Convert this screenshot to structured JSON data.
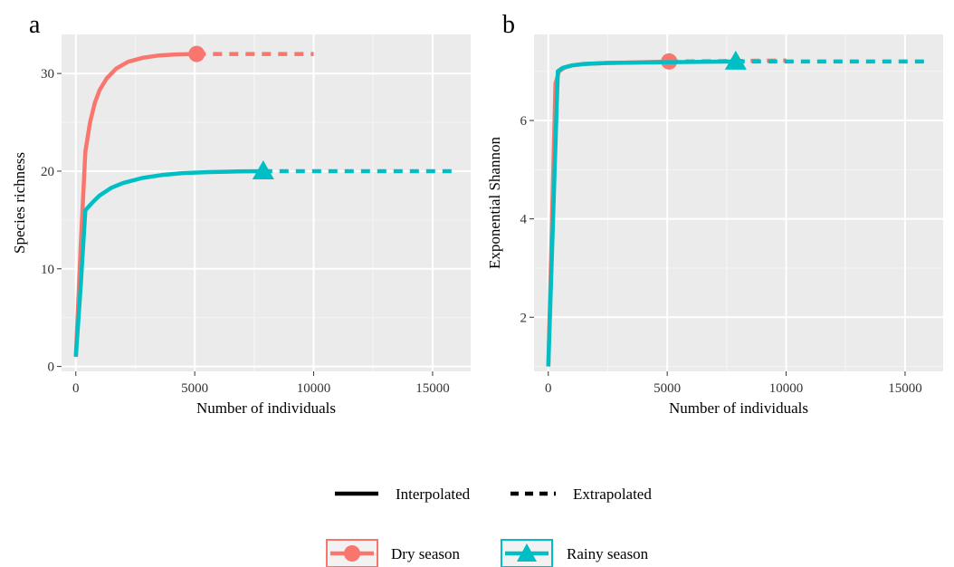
{
  "colors": {
    "dry": "#F8766D",
    "rainy": "#00BFC4",
    "panel_bg": "#EBEBEB",
    "grid_major": "#FFFFFF",
    "grid_minor": "#F4F4F4"
  },
  "legend": {
    "method_items": [
      {
        "label": "Interpolated",
        "line": "solid"
      },
      {
        "label": "Extrapolated",
        "line": "dashed"
      }
    ],
    "group_items": [
      {
        "label": "Dry season",
        "series": "dry",
        "shape": "circle"
      },
      {
        "label": "Rainy season",
        "series": "rainy",
        "shape": "triangle"
      }
    ]
  },
  "chart_data": [
    {
      "panel": "a",
      "type": "line",
      "xlabel": "Number of individuals",
      "ylabel": "Species richness",
      "xlim": [
        -600,
        16600
      ],
      "ylim": [
        -0.5,
        34
      ],
      "xticks": [
        0,
        5000,
        10000,
        15000
      ],
      "yticks": [
        0,
        10,
        20,
        30
      ],
      "grid": true,
      "series": [
        {
          "key": "dry",
          "interpolated": [
            [
              0,
              1
            ],
            [
              200,
              12
            ],
            [
              400,
              22
            ],
            [
              600,
              25
            ],
            [
              800,
              27
            ],
            [
              1000,
              28.3
            ],
            [
              1300,
              29.5
            ],
            [
              1700,
              30.5
            ],
            [
              2200,
              31.2
            ],
            [
              2800,
              31.6
            ],
            [
              3500,
              31.85
            ],
            [
              4200,
              31.95
            ],
            [
              5080,
              32
            ]
          ],
          "extrapolated": [
            [
              5080,
              32
            ],
            [
              10000,
              32
            ]
          ],
          "observed": [
            5080,
            32
          ],
          "marker": "circle"
        },
        {
          "key": "rainy",
          "interpolated": [
            [
              0,
              1
            ],
            [
              200,
              8
            ],
            [
              400,
              16
            ],
            [
              700,
              16.8
            ],
            [
              1000,
              17.5
            ],
            [
              1500,
              18.3
            ],
            [
              2000,
              18.8
            ],
            [
              2800,
              19.3
            ],
            [
              3600,
              19.6
            ],
            [
              4500,
              19.8
            ],
            [
              5600,
              19.9
            ],
            [
              6800,
              19.97
            ],
            [
              7880,
              20
            ]
          ],
          "extrapolated": [
            [
              7880,
              20
            ],
            [
              15800,
              20
            ]
          ],
          "observed": [
            7880,
            20
          ],
          "marker": "triangle"
        }
      ]
    },
    {
      "panel": "b",
      "type": "line",
      "xlabel": "Number of individuals",
      "ylabel": "Exponential Shannon",
      "xlim": [
        -600,
        16600
      ],
      "ylim": [
        0.9,
        7.75
      ],
      "xticks": [
        0,
        5000,
        10000,
        15000
      ],
      "yticks": [
        2,
        4,
        6
      ],
      "grid": true,
      "series": [
        {
          "key": "dry",
          "interpolated": [
            [
              0,
              1
            ],
            [
              300,
              6.75
            ],
            [
              450,
              7.0
            ],
            [
              700,
              7.08
            ],
            [
              1000,
              7.12
            ],
            [
              1500,
              7.15
            ],
            [
              2500,
              7.17
            ],
            [
              3500,
              7.18
            ],
            [
              5080,
              7.2
            ]
          ],
          "extrapolated": [
            [
              5080,
              7.2
            ],
            [
              10000,
              7.22
            ]
          ],
          "observed": [
            5080,
            7.2
          ],
          "marker": "circle"
        },
        {
          "key": "rainy",
          "interpolated": [
            [
              0,
              1
            ],
            [
              400,
              7.0
            ],
            [
              600,
              7.07
            ],
            [
              1000,
              7.12
            ],
            [
              1500,
              7.15
            ],
            [
              2500,
              7.17
            ],
            [
              4000,
              7.18
            ],
            [
              6000,
              7.19
            ],
            [
              7880,
              7.2
            ]
          ],
          "extrapolated": [
            [
              7880,
              7.2
            ],
            [
              15800,
              7.2
            ]
          ],
          "observed": [
            7880,
            7.2
          ],
          "marker": "triangle"
        }
      ]
    }
  ]
}
